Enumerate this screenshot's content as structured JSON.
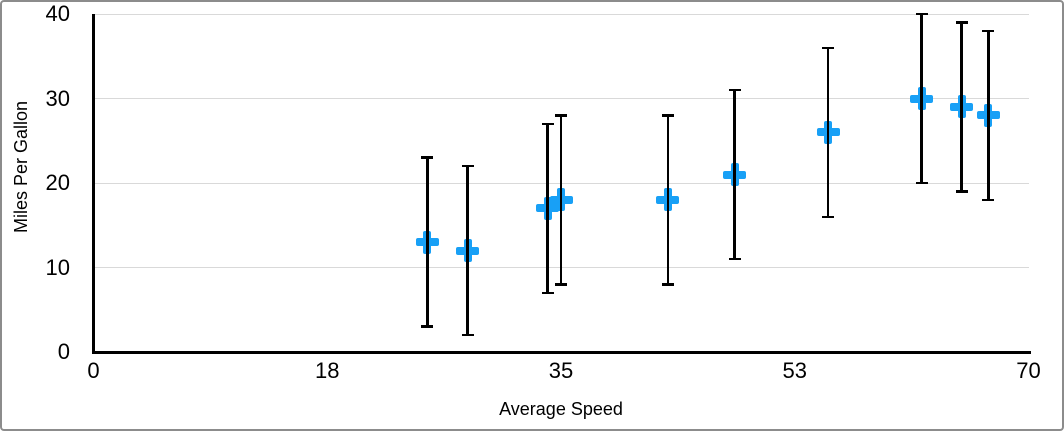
{
  "chart_data": {
    "type": "scatter",
    "title": "",
    "xlabel": "Average Speed",
    "ylabel": "Miles Per Gallon",
    "xlim": [
      0,
      70
    ],
    "ylim": [
      0,
      40
    ],
    "grid": true,
    "legend_position": "none",
    "marker_shape": "plus",
    "marker_color": "#18A0F6",
    "error_bars": {
      "type": "fixed-value",
      "value": 10,
      "color": "#000000"
    },
    "x_ticks": [
      {
        "value": 0,
        "label": "0"
      },
      {
        "value": 17.5,
        "label": "18"
      },
      {
        "value": 35,
        "label": "35"
      },
      {
        "value": 52.5,
        "label": "53"
      },
      {
        "value": 70,
        "label": "70"
      }
    ],
    "y_ticks": [
      {
        "value": 0,
        "label": "0"
      },
      {
        "value": 10,
        "label": "10"
      },
      {
        "value": 20,
        "label": "20"
      },
      {
        "value": 30,
        "label": "30"
      },
      {
        "value": 40,
        "label": "40"
      }
    ],
    "series": [
      {
        "name": "Miles Per Gallon",
        "points": [
          {
            "x": 25,
            "y": 13,
            "error_plus": 10,
            "error_minus": 10
          },
          {
            "x": 28,
            "y": 12,
            "error_plus": 10,
            "error_minus": 10
          },
          {
            "x": 34,
            "y": 17,
            "error_plus": 10,
            "error_minus": 10
          },
          {
            "x": 35,
            "y": 18,
            "error_plus": 10,
            "error_minus": 10
          },
          {
            "x": 43,
            "y": 18,
            "error_plus": 10,
            "error_minus": 10
          },
          {
            "x": 48,
            "y": 21,
            "error_plus": 10,
            "error_minus": 10
          },
          {
            "x": 55,
            "y": 26,
            "error_plus": 10,
            "error_minus": 10
          },
          {
            "x": 62,
            "y": 30,
            "error_plus": 10,
            "error_minus": 10
          },
          {
            "x": 65,
            "y": 29,
            "error_plus": 10,
            "error_minus": 10
          },
          {
            "x": 67,
            "y": 28,
            "error_plus": 10,
            "error_minus": 10
          }
        ]
      }
    ]
  },
  "colors": {
    "marker": "#18A0F6",
    "axis": "#000000",
    "gridline": "#D9D9D9",
    "frame_border": "#8C8C8C",
    "background": "#FFFFFF"
  }
}
